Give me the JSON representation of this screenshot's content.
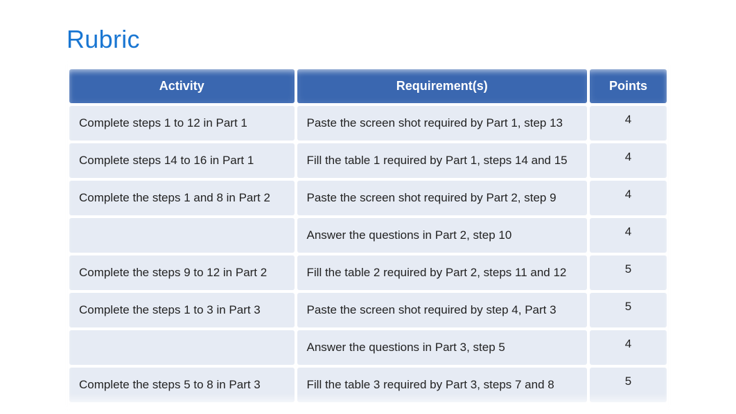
{
  "title": "Rubric",
  "title_color": "#1976d2",
  "table": {
    "header_bg": "#3a67b0",
    "header_text_color": "#ffffff",
    "row_bg": "#e6ebf4",
    "text_color": "#222222",
    "columns": [
      {
        "label": "Activity",
        "width": "38%"
      },
      {
        "label": "Requirement(s)",
        "width": "49%"
      },
      {
        "label": "Points",
        "width": "13%"
      }
    ],
    "rows": [
      {
        "activity": "Complete steps 1 to 12 in Part 1",
        "requirement": "Paste the screen shot required by Part 1, step 13",
        "points": "4"
      },
      {
        "activity": "Complete steps 14 to 16 in Part 1",
        "requirement": "Fill the table 1 required by Part 1, steps 14 and 15",
        "points": "4"
      },
      {
        "activity": "Complete the steps 1 and 8 in Part 2",
        "requirement": "Paste the screen shot required by Part 2, step 9",
        "points": "4"
      },
      {
        "activity": "",
        "requirement": "Answer the questions in Part 2, step 10",
        "points": "4"
      },
      {
        "activity": "Complete the steps 9 to 12 in Part 2",
        "requirement": "Fill the table 2 required by Part 2, steps 11 and 12",
        "points": "5"
      },
      {
        "activity": "Complete the steps 1 to 3 in Part 3",
        "requirement": "Paste the screen shot required by step 4, Part 3",
        "points": "5"
      },
      {
        "activity": "",
        "requirement": "Answer the questions in Part 3, step 5",
        "points": "4"
      },
      {
        "activity": "Complete the steps 5 to 8 in Part 3",
        "requirement": "Fill the table 3 required by Part 3, steps 7 and 8",
        "points": "5"
      }
    ]
  }
}
